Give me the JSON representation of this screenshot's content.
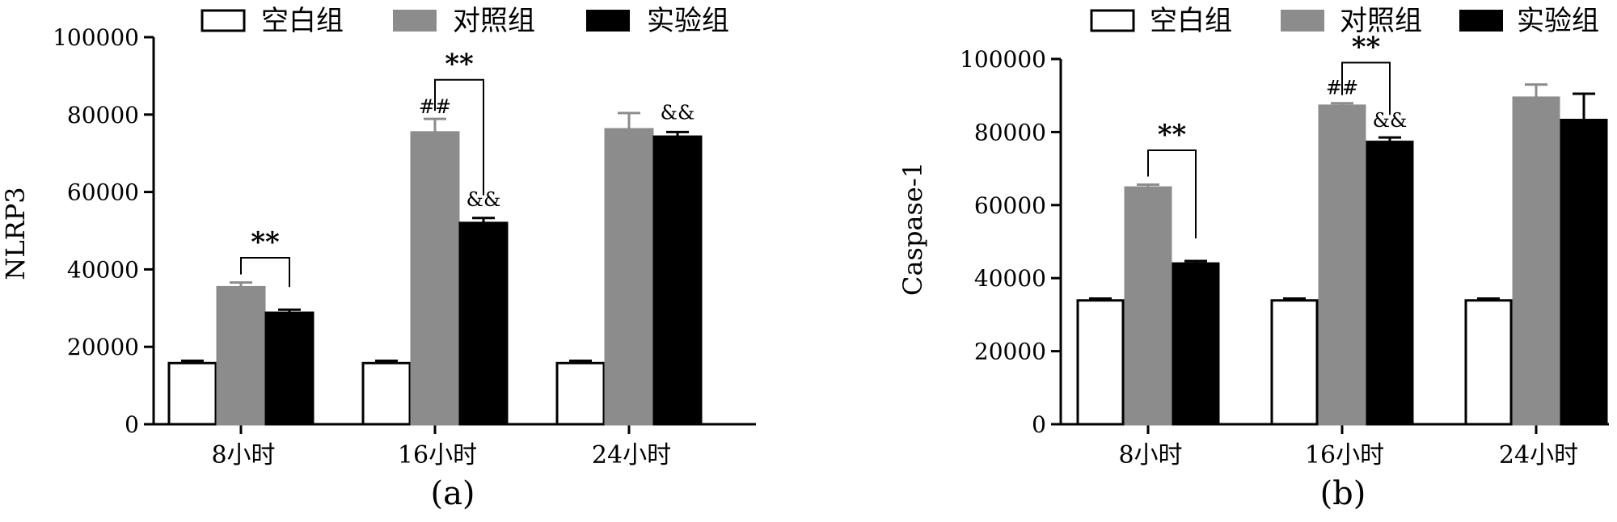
{
  "legend": {
    "items": [
      {
        "label": "空白组",
        "color": "#ffffff"
      },
      {
        "label": "对照组",
        "color": "#8c8c8c"
      },
      {
        "label": "实验组",
        "color": "#000000"
      }
    ]
  },
  "chart_data": [
    {
      "type": "bar",
      "panel_label": "(a)",
      "ylabel": "NLRP3",
      "xlabel": "",
      "ylim": [
        0,
        100000
      ],
      "yticks": [
        "0",
        "20000",
        "40000",
        "60000",
        "80000",
        "100000"
      ],
      "categories": [
        "8小时",
        "16小时",
        "24小时"
      ],
      "series": [
        {
          "name": "空白组",
          "color": "#ffffff",
          "values": [
            15800,
            15800,
            15800
          ],
          "errors": [
            600,
            600,
            600
          ]
        },
        {
          "name": "对照组",
          "color": "#8c8c8c",
          "values": [
            35400,
            75400,
            76200
          ],
          "errors": [
            1200,
            3500,
            4200
          ]
        },
        {
          "name": "实验组",
          "color": "#000000",
          "values": [
            28800,
            52000,
            74300
          ],
          "errors": [
            800,
            1300,
            1200
          ]
        }
      ],
      "annotations": [
        {
          "text": "**",
          "type": "bracket",
          "category": 0,
          "from_series": 1,
          "to_series": 2,
          "top": 43000
        },
        {
          "text": "**",
          "type": "bracket",
          "category": 1,
          "from_series": 1,
          "to_series": 2,
          "top": 89000
        },
        {
          "text": "##",
          "type": "mark",
          "category": 1,
          "series": 1,
          "value": 79500
        },
        {
          "text": "&&",
          "type": "mark",
          "category": 1,
          "series": 2,
          "value": 55500
        },
        {
          "text": "&&",
          "type": "mark",
          "category": 2,
          "series": 2,
          "value": 78000
        }
      ]
    },
    {
      "type": "bar",
      "panel_label": "(b)",
      "ylabel": "Caspase-1",
      "xlabel": "",
      "ylim": [
        0,
        100000
      ],
      "yticks": [
        "0",
        "20000",
        "40000",
        "60000",
        "80000",
        "100000"
      ],
      "categories": [
        "8小时",
        "16小时",
        "24小时"
      ],
      "series": [
        {
          "name": "空白组",
          "color": "#ffffff",
          "values": [
            33900,
            33900,
            33900
          ],
          "errors": [
            500,
            500,
            500
          ]
        },
        {
          "name": "对照组",
          "color": "#8c8c8c",
          "values": [
            64800,
            87200,
            89400
          ],
          "errors": [
            800,
            700,
            3600
          ]
        },
        {
          "name": "实验组",
          "color": "#000000",
          "values": [
            44000,
            77300,
            83300
          ],
          "errors": [
            700,
            1200,
            7200
          ]
        }
      ],
      "annotations": [
        {
          "text": "**",
          "type": "bracket",
          "category": 0,
          "from_series": 1,
          "to_series": 2,
          "top": 75000
        },
        {
          "text": "**",
          "type": "bracket",
          "category": 1,
          "from_series": 1,
          "to_series": 2,
          "top": 99000
        },
        {
          "text": "##",
          "type": "mark",
          "category": 1,
          "series": 1,
          "value": 89500
        },
        {
          "text": "&&",
          "type": "mark",
          "category": 1,
          "series": 2,
          "value": 80500
        }
      ]
    }
  ]
}
